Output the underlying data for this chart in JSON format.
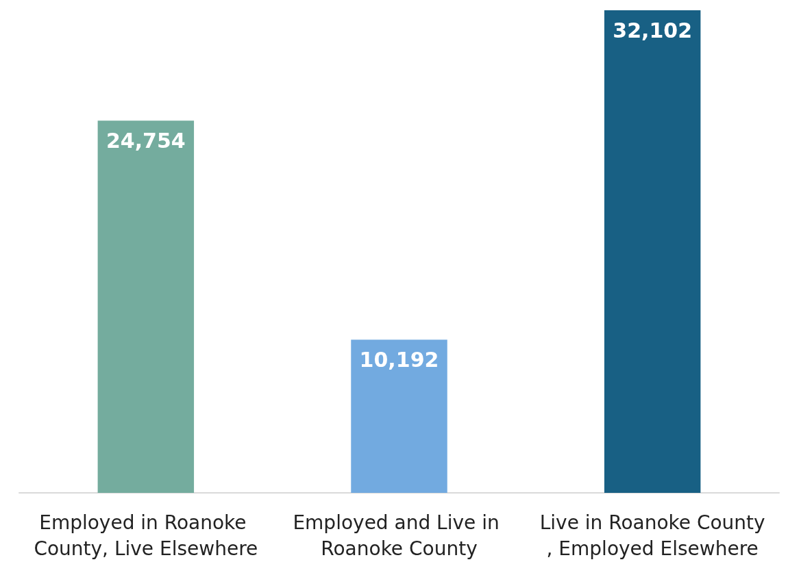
{
  "chart_data": {
    "type": "bar",
    "categories": [
      "Employed in Roanoke County, Live Elsewhere",
      "Employed and Live in Roanoke County",
      "Live in Roanoke County, Employed Elsewhere"
    ],
    "values": [
      24754,
      10192,
      32102
    ],
    "value_labels": [
      "24,754",
      "10,192",
      "32,102"
    ],
    "colors": [
      "#74ac9e",
      "#72aae0",
      "#186084"
    ]
  }
}
